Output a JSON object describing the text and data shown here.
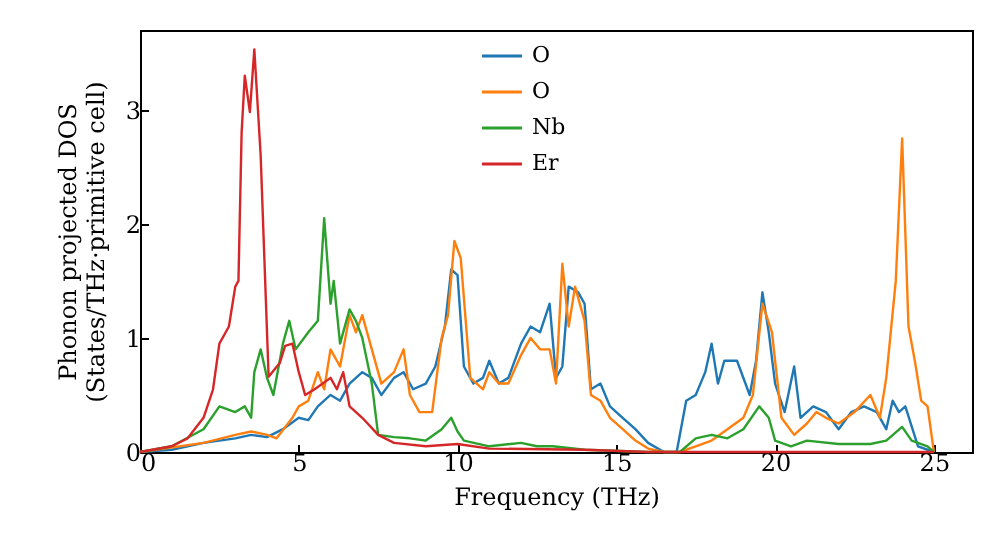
{
  "chart_data": {
    "type": "line",
    "xlabel": "Frequency (THz)",
    "ylabel": "Phonon projected DOS\n(States/THz·primitive cell)",
    "xlim": [
      0,
      26.2
    ],
    "ylim": [
      0,
      3.7
    ],
    "xticks": [
      0,
      5,
      10,
      15,
      20,
      25
    ],
    "yticks": [
      0,
      1,
      2,
      3
    ],
    "legend": "top",
    "series": [
      {
        "name": "O",
        "color": "#1f77b4",
        "x": [
          0,
          1,
          2,
          3,
          3.5,
          4,
          4.5,
          5,
          5.3,
          5.6,
          6,
          6.3,
          6.6,
          7,
          7.3,
          7.6,
          8,
          8.3,
          8.6,
          9,
          9.3,
          9.6,
          9.8,
          10,
          10.2,
          10.5,
          10.8,
          11,
          11.3,
          11.6,
          12,
          12.3,
          12.6,
          12.9,
          13.1,
          13.3,
          13.5,
          13.8,
          14,
          14.2,
          14.5,
          14.8,
          15.2,
          15.6,
          16,
          16.5,
          16.9,
          17.2,
          17.5,
          17.8,
          18,
          18.2,
          18.4,
          18.8,
          19.2,
          19.4,
          19.6,
          19.8,
          20,
          20.3,
          20.6,
          20.8,
          21.2,
          21.6,
          22,
          22.4,
          22.8,
          23.2,
          23.5,
          23.7,
          23.9,
          24.1,
          24.5,
          25
        ],
        "values": [
          0,
          0.02,
          0.08,
          0.12,
          0.15,
          0.13,
          0.2,
          0.3,
          0.28,
          0.4,
          0.5,
          0.45,
          0.6,
          0.7,
          0.65,
          0.5,
          0.65,
          0.7,
          0.55,
          0.6,
          0.75,
          1.1,
          1.6,
          1.55,
          0.75,
          0.6,
          0.65,
          0.8,
          0.6,
          0.65,
          0.95,
          1.1,
          1.05,
          1.3,
          0.65,
          0.75,
          1.45,
          1.4,
          1.3,
          0.55,
          0.6,
          0.4,
          0.3,
          0.2,
          0.08,
          0,
          0,
          0.45,
          0.5,
          0.7,
          0.95,
          0.6,
          0.8,
          0.8,
          0.5,
          0.8,
          1.4,
          1.05,
          0.6,
          0.35,
          0.75,
          0.3,
          0.4,
          0.35,
          0.2,
          0.35,
          0.4,
          0.35,
          0.2,
          0.45,
          0.35,
          0.4,
          0.05,
          0
        ]
      },
      {
        "name": "O",
        "color": "#ff7f0e",
        "x": [
          0,
          2,
          3,
          3.5,
          4,
          4.3,
          4.8,
          5,
          5.3,
          5.6,
          5.8,
          6,
          6.3,
          6.6,
          6.8,
          7,
          7.3,
          7.6,
          8,
          8.3,
          8.5,
          8.8,
          9.2,
          9.5,
          9.7,
          9.9,
          10.1,
          10.4,
          10.8,
          11,
          11.3,
          11.6,
          12,
          12.3,
          12.6,
          12.9,
          13.1,
          13.3,
          13.5,
          13.7,
          14,
          14.2,
          14.5,
          14.8,
          15.2,
          15.6,
          16,
          16.5,
          17,
          17.5,
          18,
          18.5,
          19,
          19.3,
          19.6,
          19.9,
          20.2,
          20.6,
          21,
          21.3,
          21.6,
          22,
          22.5,
          23,
          23.3,
          23.5,
          23.8,
          24,
          24.2,
          24.4,
          24.6,
          24.8,
          25
        ],
        "values": [
          0,
          0.08,
          0.15,
          0.18,
          0.15,
          0.12,
          0.3,
          0.4,
          0.45,
          0.7,
          0.55,
          0.9,
          0.75,
          1.2,
          1.05,
          1.2,
          0.9,
          0.6,
          0.7,
          0.9,
          0.5,
          0.35,
          0.35,
          1,
          1.2,
          1.85,
          1.7,
          0.65,
          0.55,
          0.7,
          0.6,
          0.6,
          0.85,
          1,
          0.9,
          0.9,
          0.6,
          1.65,
          1.1,
          1.45,
          1.15,
          0.5,
          0.45,
          0.3,
          0.2,
          0.1,
          0.03,
          0,
          0,
          0.05,
          0.1,
          0.2,
          0.3,
          0.5,
          1.3,
          1.05,
          0.3,
          0.15,
          0.25,
          0.35,
          0.3,
          0.25,
          0.35,
          0.5,
          0.3,
          0.65,
          1.5,
          2.75,
          1.1,
          0.8,
          0.45,
          0.4,
          0
        ]
      },
      {
        "name": "Nb",
        "color": "#2ca02c",
        "x": [
          0,
          1,
          2,
          2.5,
          3,
          3.3,
          3.5,
          3.6,
          3.8,
          4,
          4.2,
          4.5,
          4.7,
          4.9,
          5.3,
          5.6,
          5.8,
          6,
          6.1,
          6.3,
          6.6,
          6.8,
          7,
          7.3,
          7.5,
          8,
          8.5,
          9,
          9.5,
          9.8,
          10,
          10.2,
          11,
          12,
          12.5,
          13,
          14,
          16,
          17,
          17.5,
          18,
          18.5,
          19,
          19.5,
          19.8,
          20,
          20.5,
          21,
          22,
          23,
          23.5,
          24,
          24.3,
          24.8,
          25
        ],
        "values": [
          0,
          0.05,
          0.2,
          0.4,
          0.35,
          0.4,
          0.3,
          0.7,
          0.9,
          0.65,
          0.5,
          0.95,
          1.15,
          0.9,
          1.05,
          1.15,
          2.05,
          1.3,
          1.5,
          0.95,
          1.25,
          1.15,
          1,
          0.6,
          0.15,
          0.13,
          0.12,
          0.1,
          0.2,
          0.3,
          0.18,
          0.1,
          0.05,
          0.08,
          0.05,
          0.05,
          0.02,
          0,
          0,
          0.12,
          0.15,
          0.12,
          0.2,
          0.4,
          0.3,
          0.1,
          0.05,
          0.1,
          0.07,
          0.07,
          0.1,
          0.22,
          0.1,
          0.05,
          0
        ]
      },
      {
        "name": "Er",
        "color": "#d62728",
        "x": [
          0,
          1,
          1.5,
          2,
          2.3,
          2.5,
          2.8,
          3,
          3.1,
          3.2,
          3.3,
          3.46,
          3.6,
          3.8,
          4.05,
          4.4,
          4.57,
          4.8,
          5,
          5.2,
          5.5,
          6,
          6.2,
          6.4,
          6.6,
          7,
          7.5,
          8,
          9,
          10,
          11,
          14,
          16,
          25
        ],
        "values": [
          0,
          0.05,
          0.12,
          0.3,
          0.55,
          0.95,
          1.1,
          1.45,
          1.5,
          2.8,
          3.3,
          2.98,
          3.53,
          2.6,
          0.66,
          0.78,
          0.93,
          0.95,
          0.7,
          0.5,
          0.55,
          0.65,
          0.55,
          0.7,
          0.4,
          0.3,
          0.15,
          0.08,
          0.05,
          0.07,
          0.03,
          0.02,
          0,
          0
        ]
      }
    ]
  }
}
